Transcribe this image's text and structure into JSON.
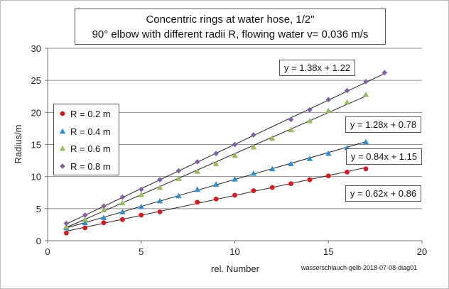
{
  "chart_data": {
    "type": "scatter",
    "title_lines": [
      "Concentric rings at water hose, 1/2\"",
      "90° elbow with different radii R, flowing water v= 0.036 m/s"
    ],
    "xlabel": "rel. Number",
    "ylabel": "Radius/m",
    "xlim": [
      0,
      20
    ],
    "ylim": [
      0,
      30
    ],
    "xticks": [
      0,
      5,
      10,
      15,
      20
    ],
    "yticks": [
      0,
      5,
      10,
      15,
      20,
      25,
      30
    ],
    "grid": "horizontal",
    "legend_position": "left",
    "credit": "wasserschlauch-gelb-2018-07-08-diag01",
    "series": [
      {
        "name": "R = 0.2 m",
        "marker": "circle",
        "color": "#e0141e",
        "x": [
          1,
          2,
          3,
          4,
          5,
          6,
          8,
          9,
          10,
          11,
          12,
          13,
          14,
          15,
          16,
          17
        ],
        "y": [
          1.2,
          2.0,
          2.8,
          3.3,
          4.0,
          4.5,
          6.0,
          6.5,
          7.1,
          7.8,
          8.3,
          8.9,
          9.5,
          10.1,
          10.7,
          11.2
        ],
        "fit": {
          "slope": 0.62,
          "intercept": 0.86,
          "x_range": [
            1,
            17
          ],
          "label": "y = 0.62x + 0.86"
        }
      },
      {
        "name": "R = 0.4 m",
        "marker": "triangle",
        "color": "#2a8fd6",
        "x": [
          1,
          2,
          3,
          4,
          5,
          6,
          7,
          8,
          9,
          10,
          11,
          12,
          13,
          14,
          15,
          16,
          17
        ],
        "y": [
          2.0,
          2.8,
          3.6,
          4.5,
          5.3,
          6.2,
          7.0,
          8.0,
          8.8,
          9.6,
          10.5,
          11.2,
          12.0,
          12.8,
          13.6,
          14.5,
          15.4
        ],
        "fit": {
          "slope": 0.84,
          "intercept": 1.15,
          "x_range": [
            1,
            17
          ],
          "label": "y = 0.84x + 1.15"
        }
      },
      {
        "name": "R = 0.6 m",
        "marker": "triangle",
        "color": "#9bbb59",
        "x": [
          1,
          2,
          3,
          4,
          5,
          6,
          7,
          8,
          9,
          10,
          11,
          12,
          13,
          14,
          15,
          16,
          17
        ],
        "y": [
          2.2,
          3.3,
          4.8,
          5.9,
          7.2,
          8.3,
          9.7,
          10.8,
          12.0,
          13.3,
          14.6,
          16.0,
          17.3,
          18.7,
          20.3,
          21.6,
          22.8
        ],
        "fit": {
          "slope": 1.28,
          "intercept": 0.78,
          "x_range": [
            1,
            17
          ],
          "label": "y = 1.28x + 0.78"
        }
      },
      {
        "name": "R = 0.8 m",
        "marker": "diamond",
        "color": "#7f5fa8",
        "x": [
          1,
          2,
          3,
          4,
          5,
          6,
          7,
          8,
          9,
          10,
          11,
          13,
          14,
          15,
          16,
          17,
          18
        ],
        "y": [
          2.7,
          4.0,
          5.4,
          6.8,
          8.0,
          9.5,
          10.9,
          12.3,
          13.6,
          15.0,
          16.5,
          18.9,
          20.4,
          22.0,
          23.4,
          24.8,
          26.2
        ],
        "fit": {
          "slope": 1.38,
          "intercept": 1.22,
          "x_range": [
            1,
            18
          ],
          "label": "y = 1.38x + 1.22"
        }
      }
    ]
  }
}
